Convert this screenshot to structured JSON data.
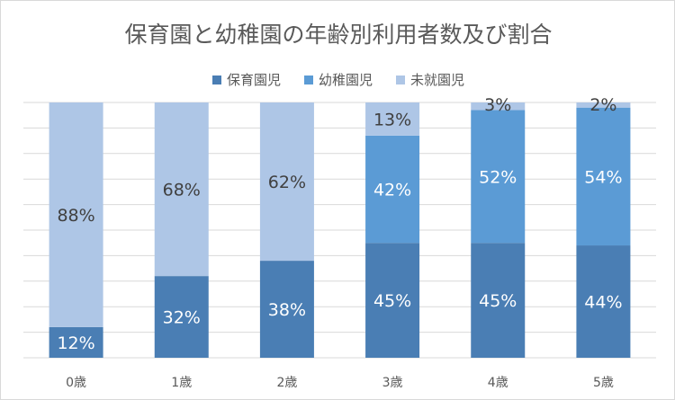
{
  "chart_data": {
    "type": "bar",
    "stacked": true,
    "title": "保育園と幼稚園の年齢別利用者数及び割合",
    "categories": [
      "0歳",
      "1歳",
      "2歳",
      "3歳",
      "4歳",
      "5歳"
    ],
    "series": [
      {
        "name": "保育園児",
        "color": "#4a7eb4",
        "values": [
          12,
          32,
          38,
          45,
          45,
          44
        ]
      },
      {
        "name": "幼稚園児",
        "color": "#5b9bd5",
        "values": [
          0,
          0,
          0,
          42,
          52,
          54
        ]
      },
      {
        "name": "未就園児",
        "color": "#aec6e6",
        "values": [
          88,
          68,
          62,
          13,
          3,
          2
        ]
      }
    ],
    "data_labels": [
      [
        "12%",
        "32%",
        "38%",
        "45%",
        "45%",
        "44%"
      ],
      [
        "",
        "",
        "",
        "42%",
        "52%",
        "54%"
      ],
      [
        "88%",
        "68%",
        "62%",
        "13%",
        "3%",
        "2%"
      ]
    ],
    "ylim": [
      0,
      100
    ],
    "grid": true,
    "legend": "top"
  }
}
